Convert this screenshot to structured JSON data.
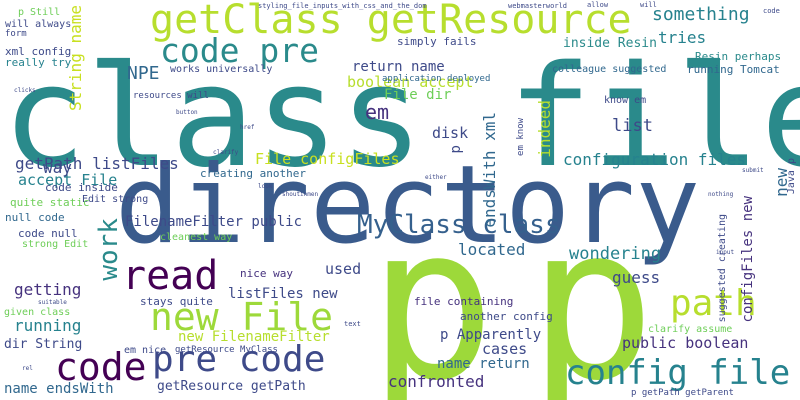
{
  "cloud": {
    "big": {
      "class_file": "class file",
      "directory": "directory",
      "p_left": "p",
      "p_right": "p",
      "getclass_getresource": "getClass getResource",
      "code_pre": "code pre",
      "pre_code": "pre code",
      "config_file": "config file",
      "new_file": "new File",
      "path": "path",
      "read": "read",
      "code": "code",
      "work": "work",
      "myclass_class": "MyClass class",
      "something": "something"
    },
    "medium": {
      "string_name": "String name",
      "boolean_accept": "boolean accept",
      "npe": "NPE",
      "return_name": "return name",
      "file_dir": "File dir",
      "em": "em",
      "endswith_xml": "endsWith xml",
      "indeed": "indeed",
      "list": "list",
      "disk": "disk",
      "p_small": "p",
      "tries": "tries",
      "inside_resin": "inside Resin",
      "configuration_files": "configuration files",
      "getpath_listfiles": "getPath listFiles",
      "file_configfiles": "File configFiles",
      "accept_file": "accept File",
      "way": "way",
      "new_right": "new",
      "configfiles_new": "configFiles new",
      "filenamefilter_public": "FilenameFilter public",
      "getting": "getting",
      "wondering": "wondering",
      "listfiles_new": "listFiles new",
      "located": "located",
      "guess": "guess",
      "used": "used",
      "running": "running",
      "new_filenamefilter": "new FilenameFilter",
      "dir_string": "dir String",
      "p_apparently": "p Apparently",
      "cases": "cases",
      "public_boolean": "public boolean",
      "name_return": "name return",
      "name_endswith": "name endsWith",
      "getresource_getpath": "getResource getPath",
      "confronted": "confronted"
    },
    "small": {
      "simply_fails": "simply fails",
      "xml_config": "xml config",
      "really_try": "really try",
      "works_universally": "works universally",
      "colleague_suggested": "colleague suggested",
      "resin_perhaps": "Resin perhaps",
      "running_tomcat": "running Tomcat",
      "creating_another": "creating another",
      "code_inside": "code inside",
      "edit_strong": "Edit strong",
      "quite_static": "quite static",
      "null_code": "null code",
      "code_null": "code null",
      "strong_edit": "strong Edit",
      "cleanest_way": "cleanest way",
      "nice_way": "nice way",
      "stays_quite": "stays quite",
      "given_class": "given class",
      "em_nice": "em nice",
      "getresource_myclass": "getResource MyClass",
      "another_config": "another config",
      "file_containing": "file containing",
      "suggested_creating": "suggested creating",
      "clarify_assume": "clarify assume",
      "know_em": "know em",
      "em_know": "em know",
      "java_p": "Java p",
      "p_getpath_getparent": "p getPath getParent",
      "p_still": "p Still",
      "will_always": "will always",
      "form": "form",
      "resources_will": "resources will",
      "application_deployed": "application deployed",
      "styling": "styling_file_inputs_with_css_and_the_dom",
      "webmasterworld": "webmasterworld",
      "allow": "allow",
      "will": "will",
      "code_top": "code",
      "clicks": "clicks",
      "button": "button",
      "href": "href",
      "clarify": "clarify",
      "shoutinmen": "shoutinmen",
      "look": "look",
      "submit": "submit",
      "either": "either",
      "nothing": "nothing",
      "suitable": "suitable",
      "rel": "rel",
      "text": "text",
      "input": "input"
    }
  }
}
